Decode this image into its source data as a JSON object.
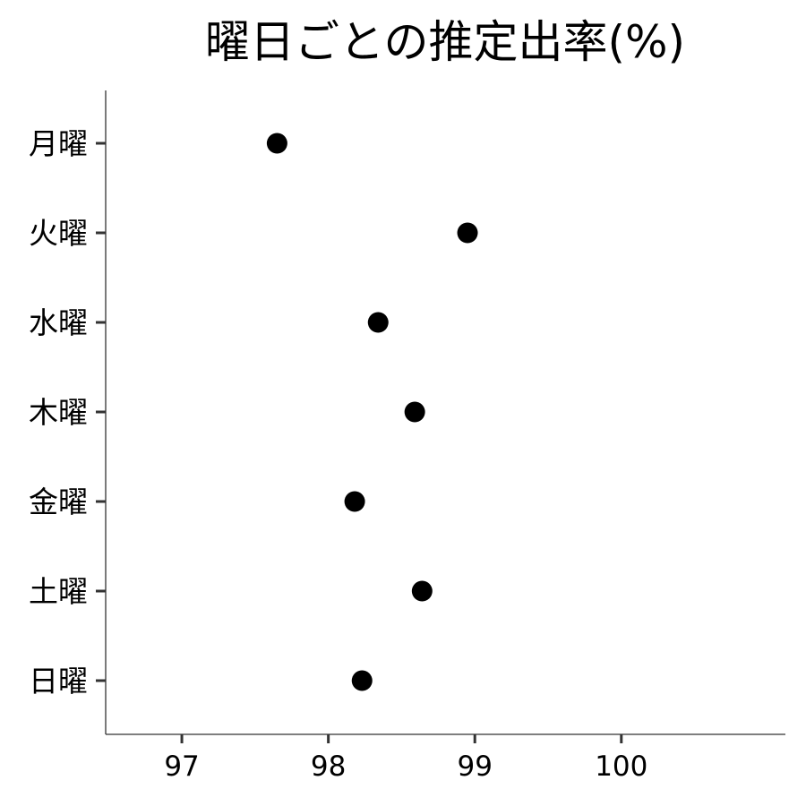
{
  "chart_data": {
    "type": "scatter",
    "title": "曜日ごとの推定出率(%)",
    "xlabel": "",
    "ylabel": "",
    "categories": [
      "月曜",
      "火曜",
      "水曜",
      "木曜",
      "金曜",
      "土曜",
      "日曜"
    ],
    "values": [
      97.65,
      98.95,
      98.34,
      98.59,
      98.18,
      98.64,
      98.23
    ],
    "xlim": [
      96.48,
      101.12
    ],
    "xticks": [
      "97",
      "98",
      "99",
      "100"
    ],
    "grid": false,
    "legend": "none",
    "point_color": "#000000"
  }
}
